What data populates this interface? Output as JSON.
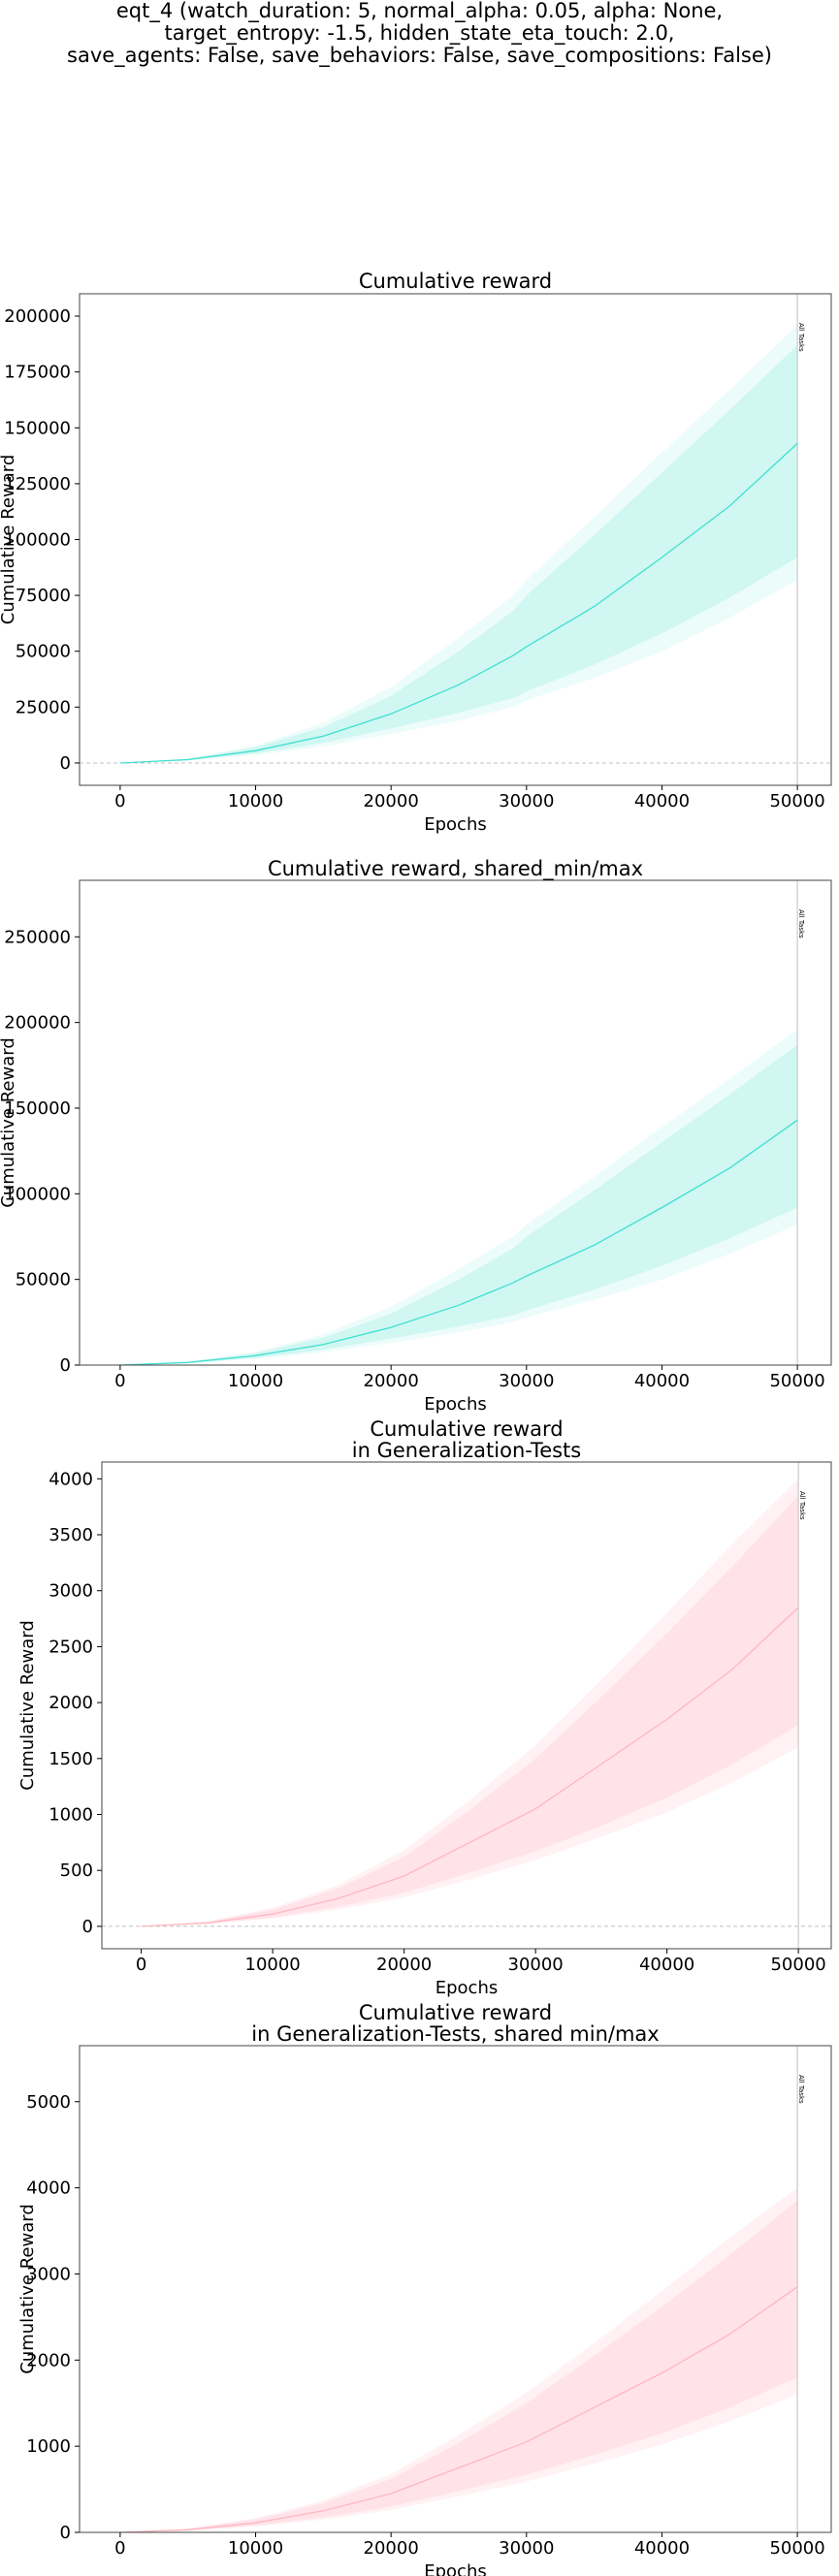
{
  "suptitle": {
    "lines": [
      "eqt_4 (watch_duration: 5, normal_alpha: 0.05, alpha: None,",
      "target_entropy: -1.5, hidden_state_eta_touch: 2.0,",
      "save_agents: False, save_behaviors: False, save_compositions: False)"
    ]
  },
  "colors": {
    "train_line": "#40e0d0",
    "train_band": "#40e0d0",
    "gen_line": "#ffb6c1",
    "gen_band": "#ffc0cb",
    "zero_line": "#c0c0c0",
    "vline": "#c0c0c0",
    "axes": "#444444"
  },
  "chart_data": [
    {
      "type": "line",
      "title": [
        "Cumulative reward"
      ],
      "xlabel": "Epochs",
      "ylabel": "Cumulative Reward",
      "xlim": [
        -3000,
        52500
      ],
      "ylim": [
        -10000,
        210000
      ],
      "xticks": [
        0,
        10000,
        20000,
        30000,
        40000,
        50000
      ],
      "yticks": [
        0,
        25000,
        50000,
        75000,
        100000,
        125000,
        150000,
        175000,
        200000
      ],
      "zero_line": true,
      "vline": {
        "x": 50000,
        "label": "All Tasks"
      },
      "style": "train",
      "series": {
        "x": [
          0,
          5000,
          10000,
          15000,
          20000,
          25000,
          29000,
          30000,
          35000,
          40000,
          45000,
          50000
        ],
        "mean": [
          0,
          1500,
          5500,
          12000,
          22000,
          35000,
          48000,
          52000,
          70000,
          92000,
          115000,
          143000
        ],
        "band_inner_low": [
          0,
          1200,
          4300,
          9000,
          15500,
          22500,
          29000,
          32000,
          44000,
          58000,
          74000,
          92000
        ],
        "band_inner_high": [
          0,
          1900,
          7000,
          16000,
          30000,
          50000,
          68000,
          75000,
          102000,
          130000,
          158000,
          187000
        ],
        "band_outer_low": [
          0,
          1000,
          3600,
          7500,
          13000,
          19000,
          25000,
          28000,
          38000,
          50000,
          65000,
          82000
        ],
        "band_outer_high": [
          0,
          2100,
          7800,
          18000,
          34000,
          56000,
          75000,
          82000,
          110000,
          139000,
          167000,
          196000
        ]
      }
    },
    {
      "type": "line",
      "title": [
        "Cumulative reward, shared_min/max"
      ],
      "xlabel": "Epochs",
      "ylabel": "Cumulative Reward",
      "xlim": [
        -3000,
        52500
      ],
      "ylim": [
        0,
        283000
      ],
      "xticks": [
        0,
        10000,
        20000,
        30000,
        40000,
        50000
      ],
      "yticks": [
        0,
        50000,
        100000,
        150000,
        200000,
        250000
      ],
      "zero_line": false,
      "vline": {
        "x": 50000,
        "label": "All Tasks"
      },
      "style": "train",
      "series": {
        "x": [
          0,
          5000,
          10000,
          15000,
          20000,
          25000,
          29000,
          30000,
          35000,
          40000,
          45000,
          50000
        ],
        "mean": [
          0,
          1500,
          5500,
          12000,
          22000,
          35000,
          48000,
          52000,
          70000,
          92000,
          115000,
          143000
        ],
        "band_inner_low": [
          0,
          1200,
          4300,
          9000,
          15500,
          22500,
          29000,
          32000,
          44000,
          58000,
          74000,
          92000
        ],
        "band_inner_high": [
          0,
          1900,
          7000,
          16000,
          30000,
          50000,
          68000,
          75000,
          102000,
          130000,
          158000,
          187000
        ],
        "band_outer_low": [
          0,
          1000,
          3600,
          7500,
          13000,
          19000,
          25000,
          28000,
          38000,
          50000,
          65000,
          82000
        ],
        "band_outer_high": [
          0,
          2100,
          7800,
          18000,
          34000,
          56000,
          75000,
          82000,
          110000,
          139000,
          167000,
          196000
        ]
      }
    },
    {
      "type": "line",
      "title": [
        "Cumulative reward",
        "in Generalization-Tests"
      ],
      "xlabel": "Epochs",
      "ylabel": "Cumulative Reward",
      "xlim": [
        -3000,
        52500
      ],
      "ylim": [
        -200,
        4150
      ],
      "xticks": [
        0,
        10000,
        20000,
        30000,
        40000,
        50000
      ],
      "yticks": [
        0,
        500,
        1000,
        1500,
        2000,
        2500,
        3000,
        3500,
        4000
      ],
      "zero_line": true,
      "vline": {
        "x": 50000,
        "label": "All Tasks"
      },
      "style": "gen",
      "series": {
        "x": [
          0,
          5000,
          10000,
          15000,
          20000,
          25000,
          30000,
          35000,
          40000,
          45000,
          50000
        ],
        "mean": [
          0,
          30,
          110,
          250,
          450,
          750,
          1050,
          1450,
          1850,
          2300,
          2850
        ],
        "band_inner_low": [
          0,
          22,
          80,
          175,
          300,
          480,
          670,
          900,
          1150,
          1450,
          1800
        ],
        "band_inner_high": [
          0,
          40,
          150,
          340,
          620,
          1040,
          1500,
          2050,
          2620,
          3220,
          3850
        ],
        "band_outer_low": [
          0,
          18,
          70,
          150,
          260,
          420,
          590,
          800,
          1020,
          1290,
          1600
        ],
        "band_outer_high": [
          0,
          45,
          165,
          370,
          680,
          1130,
          1620,
          2200,
          2800,
          3420,
          4000
        ]
      }
    },
    {
      "type": "line",
      "title": [
        "Cumulative reward",
        "in Generalization-Tests, shared min/max"
      ],
      "xlabel": "Epochs",
      "ylabel": "Cumulative Reward",
      "xlim": [
        -3000,
        52500
      ],
      "ylim": [
        0,
        5650
      ],
      "xticks": [
        0,
        10000,
        20000,
        30000,
        40000,
        50000
      ],
      "yticks": [
        0,
        1000,
        2000,
        3000,
        4000,
        5000
      ],
      "zero_line": false,
      "vline": {
        "x": 50000,
        "label": "All Tasks"
      },
      "style": "gen",
      "series": {
        "x": [
          0,
          5000,
          10000,
          15000,
          20000,
          25000,
          30000,
          35000,
          40000,
          45000,
          50000
        ],
        "mean": [
          0,
          30,
          110,
          250,
          450,
          750,
          1050,
          1450,
          1850,
          2300,
          2850
        ],
        "band_inner_low": [
          0,
          22,
          80,
          175,
          300,
          480,
          670,
          900,
          1150,
          1450,
          1800
        ],
        "band_inner_high": [
          0,
          40,
          150,
          340,
          620,
          1040,
          1500,
          2050,
          2620,
          3220,
          3850
        ],
        "band_outer_low": [
          0,
          18,
          70,
          150,
          260,
          420,
          590,
          800,
          1020,
          1290,
          1600
        ],
        "band_outer_high": [
          0,
          45,
          165,
          370,
          680,
          1130,
          1620,
          2200,
          2800,
          3420,
          4000
        ]
      }
    }
  ]
}
